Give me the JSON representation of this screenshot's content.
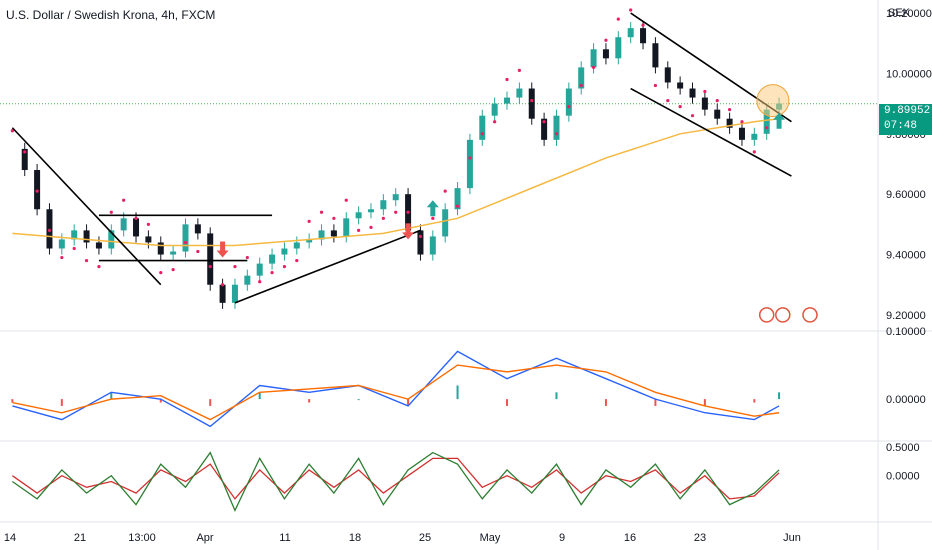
{
  "header": {
    "title": "U.S. Dollar / Swedish Krona, 4h, FXCM"
  },
  "colors": {
    "bull": "#26a69a",
    "bear": "#131722",
    "sar": "#e91e63",
    "ma": "#f5b942",
    "macd": "#2962ff",
    "signal": "#ff6d00",
    "hist_pos": "#26a69a",
    "hist_neg": "#ef5350",
    "stoch_k": "#2e7d32",
    "stoch_d": "#d32f2f",
    "last_line": "#4caf50",
    "last_tag": "#089981",
    "arrow_up": "#26a69a",
    "arrow_down": "#ef5350",
    "highlight": "#fbc97a"
  },
  "price_tag": {
    "value": "9.89952",
    "countdown": "07:48"
  },
  "chart_data": [
    {
      "type": "line",
      "panel": "price",
      "title": "U.S. Dollar / Swedish Krona, 4h, FXCM",
      "ylabel": "SEK",
      "ylim": [
        9.15,
        10.23
      ],
      "y_ticks": [
        "10.20000",
        "10.00000",
        "9.80000",
        "9.60000",
        "9.40000",
        "9.20000"
      ],
      "x_ticks": [
        "14",
        "21",
        "13:00",
        "Apr",
        "11",
        "18",
        "25",
        "May",
        "9",
        "16",
        "23",
        "Jun"
      ],
      "last_price": 9.89952,
      "series": [
        {
          "role": "price",
          "x": [
            14,
            15,
            16,
            17,
            18,
            19,
            20,
            21,
            22,
            23,
            24,
            25,
            26,
            27,
            28,
            29,
            30,
            31,
            32,
            33,
            34,
            35,
            36,
            37,
            38,
            39,
            40,
            41,
            42,
            43,
            44,
            45,
            46,
            47,
            48,
            49,
            50,
            51,
            52,
            53,
            54,
            55,
            56,
            57,
            58,
            59,
            60,
            61,
            62,
            63,
            64,
            65,
            66,
            67,
            68,
            69,
            70,
            71,
            72,
            73,
            74,
            75,
            76
          ],
          "values": [
            9.75,
            9.68,
            9.55,
            9.42,
            9.45,
            9.48,
            9.44,
            9.42,
            9.48,
            9.52,
            9.46,
            9.44,
            9.4,
            9.41,
            9.5,
            9.47,
            9.3,
            9.24,
            9.3,
            9.33,
            9.37,
            9.4,
            9.42,
            9.44,
            9.45,
            9.48,
            9.46,
            9.52,
            9.54,
            9.55,
            9.58,
            9.6,
            9.48,
            9.4,
            9.46,
            9.55,
            9.62,
            9.78,
            9.86,
            9.9,
            9.92,
            9.95,
            9.85,
            9.78,
            9.86,
            9.95,
            10.02,
            10.08,
            10.05,
            10.12,
            10.15,
            10.1,
            10.02,
            9.97,
            9.95,
            9.92,
            9.88,
            9.85,
            9.82,
            9.78,
            9.8,
            9.88,
            9.9
          ]
        },
        {
          "role": "moving-average",
          "x": [
            14,
            20,
            26,
            32,
            38,
            44,
            50,
            56,
            62,
            68,
            74,
            76
          ],
          "values": [
            9.47,
            9.45,
            9.43,
            9.43,
            9.45,
            9.47,
            9.52,
            9.62,
            9.72,
            9.8,
            9.84,
            9.85
          ]
        }
      ]
    },
    {
      "type": "line",
      "panel": "macd",
      "ylim": [
        -0.06,
        0.1
      ],
      "y_ticks": [
        "0.10000",
        "0.00000"
      ],
      "x": [
        14,
        18,
        22,
        26,
        30,
        34,
        38,
        42,
        46,
        50,
        54,
        58,
        62,
        66,
        70,
        74,
        76
      ],
      "series": [
        {
          "role": "macd",
          "values": [
            -0.01,
            -0.03,
            0.01,
            0.0,
            -0.04,
            0.02,
            0.01,
            0.02,
            -0.01,
            0.07,
            0.03,
            0.06,
            0.03,
            0.0,
            -0.02,
            -0.03,
            -0.01
          ]
        },
        {
          "role": "signal",
          "values": [
            -0.005,
            -0.02,
            0.0,
            0.005,
            -0.03,
            0.01,
            0.015,
            0.02,
            0.0,
            0.05,
            0.04,
            0.05,
            0.04,
            0.01,
            -0.01,
            -0.025,
            -0.02
          ]
        },
        {
          "role": "histogram",
          "values": [
            -0.005,
            -0.01,
            0.01,
            -0.005,
            -0.01,
            0.01,
            -0.005,
            0.0,
            -0.01,
            0.02,
            -0.01,
            0.01,
            -0.01,
            -0.01,
            -0.01,
            -0.005,
            0.01
          ]
        }
      ]
    },
    {
      "type": "line",
      "panel": "stochastic",
      "ylim": [
        -0.8,
        0.6
      ],
      "y_ticks": [
        "0.5000",
        "0.0000"
      ],
      "x": [
        14,
        16,
        18,
        20,
        22,
        24,
        26,
        28,
        30,
        32,
        34,
        36,
        38,
        40,
        42,
        44,
        46,
        48,
        50,
        52,
        54,
        56,
        58,
        60,
        62,
        64,
        66,
        68,
        70,
        72,
        74,
        76
      ],
      "series": [
        {
          "role": "k",
          "values": [
            -0.1,
            -0.4,
            0.1,
            -0.3,
            0.0,
            -0.5,
            0.2,
            -0.2,
            0.4,
            -0.6,
            0.3,
            -0.4,
            0.2,
            -0.3,
            0.3,
            -0.5,
            0.1,
            0.4,
            0.2,
            -0.4,
            0.1,
            -0.3,
            0.2,
            -0.5,
            0.1,
            -0.2,
            0.2,
            -0.4,
            0.1,
            -0.5,
            -0.3,
            0.1
          ]
        },
        {
          "role": "d",
          "values": [
            0.0,
            -0.3,
            0.0,
            -0.2,
            -0.1,
            -0.3,
            0.1,
            -0.1,
            0.2,
            -0.4,
            0.1,
            -0.3,
            0.1,
            -0.2,
            0.1,
            -0.3,
            0.0,
            0.3,
            0.3,
            -0.2,
            0.0,
            -0.2,
            0.1,
            -0.3,
            0.0,
            -0.1,
            0.1,
            -0.3,
            0.0,
            -0.4,
            -0.35,
            0.05
          ]
        }
      ]
    }
  ]
}
